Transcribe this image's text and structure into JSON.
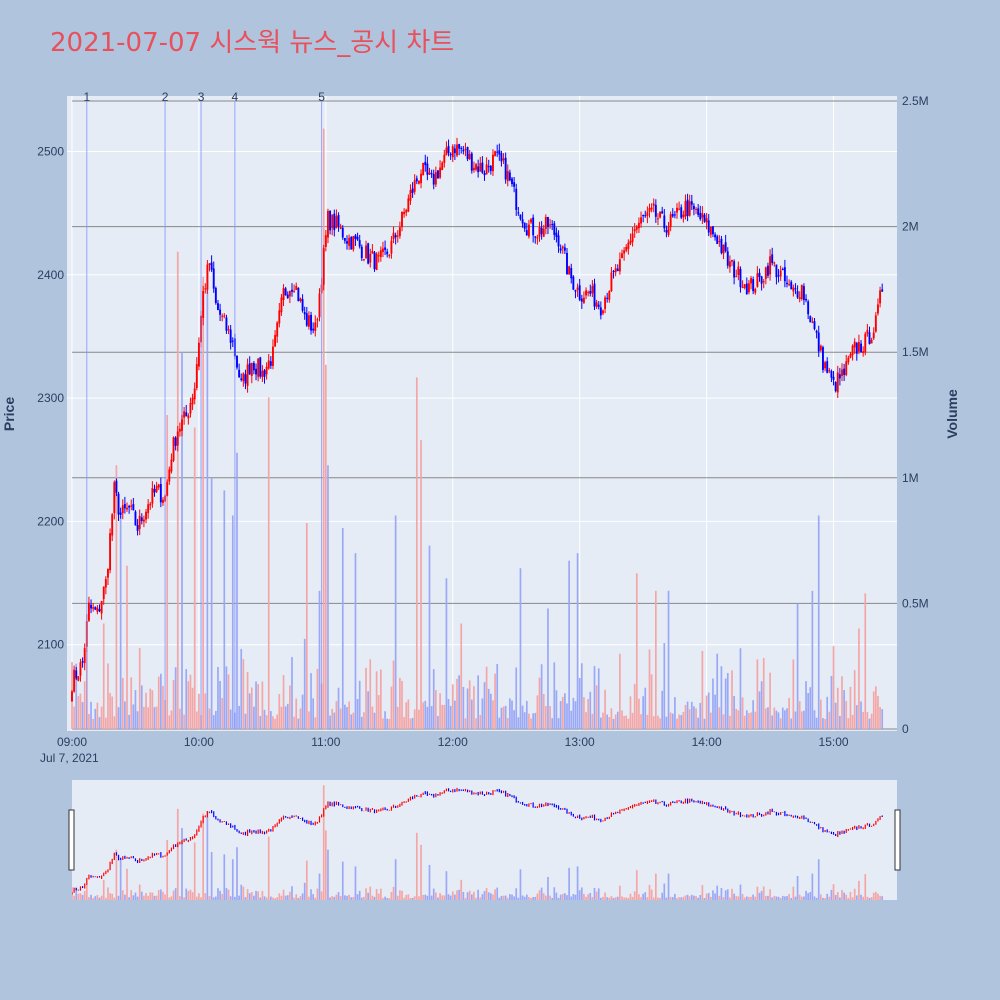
{
  "chart_data": {
    "type": "candlestick",
    "title": "2021-07-07 시스웍 뉴스_공시 차트",
    "ylabel": "Price",
    "y2label": "Volume",
    "ylim": [
      2030,
      2545
    ],
    "y2lim": [
      0,
      2550000
    ],
    "xlim": [
      "09:00",
      "15:30"
    ],
    "x_ticks": [
      "09:00",
      "10:00",
      "11:00",
      "12:00",
      "13:00",
      "14:00",
      "15:00"
    ],
    "x_date_label": "Jul 7, 2021",
    "y_ticks": [
      2100,
      2200,
      2300,
      2400,
      2500
    ],
    "y2_ticks": [
      "0",
      "0.5M",
      "1M",
      "1.5M",
      "2M",
      "2.5M"
    ],
    "y2_tick_values": [
      0,
      500000,
      1000000,
      1500000,
      2000000,
      2500000
    ],
    "colors": {
      "up": "#ff0000",
      "down": "#0000ff",
      "up_volume": "#f4a6a6",
      "down_volume": "#9aa8f5",
      "grid": "#ffffff",
      "plot_bg": "#e5ecf6",
      "paper_bg": "#b0c4de",
      "title": "#e8505b"
    },
    "news_markers": [
      {
        "label": "1",
        "time": "09:07"
      },
      {
        "label": "2",
        "time": "09:44"
      },
      {
        "label": "3",
        "time": "10:01"
      },
      {
        "label": "4",
        "time": "10:17"
      },
      {
        "label": "5",
        "time": "10:58"
      }
    ],
    "price_path": [
      [
        "09:00",
        2070
      ],
      [
        "09:05",
        2085
      ],
      [
        "09:08",
        2130
      ],
      [
        "09:12",
        2125
      ],
      [
        "09:16",
        2150
      ],
      [
        "09:20",
        2225
      ],
      [
        "09:23",
        2205
      ],
      [
        "09:27",
        2210
      ],
      [
        "09:31",
        2195
      ],
      [
        "09:36",
        2215
      ],
      [
        "09:40",
        2225
      ],
      [
        "09:44",
        2220
      ],
      [
        "09:47",
        2255
      ],
      [
        "09:50",
        2275
      ],
      [
        "09:54",
        2285
      ],
      [
        "09:58",
        2310
      ],
      [
        "10:02",
        2385
      ],
      [
        "10:05",
        2410
      ],
      [
        "10:08",
        2375
      ],
      [
        "10:12",
        2360
      ],
      [
        "10:16",
        2345
      ],
      [
        "10:20",
        2310
      ],
      [
        "10:25",
        2330
      ],
      [
        "10:30",
        2320
      ],
      [
        "10:35",
        2335
      ],
      [
        "10:40",
        2385
      ],
      [
        "10:45",
        2395
      ],
      [
        "10:50",
        2365
      ],
      [
        "10:55",
        2355
      ],
      [
        "10:58",
        2400
      ],
      [
        "11:01",
        2445
      ],
      [
        "11:05",
        2440
      ],
      [
        "11:10",
        2430
      ],
      [
        "11:15",
        2425
      ],
      [
        "11:20",
        2415
      ],
      [
        "11:25",
        2410
      ],
      [
        "11:30",
        2420
      ],
      [
        "11:35",
        2440
      ],
      [
        "11:40",
        2465
      ],
      [
        "11:45",
        2485
      ],
      [
        "11:50",
        2475
      ],
      [
        "11:55",
        2490
      ],
      [
        "12:00",
        2505
      ],
      [
        "12:05",
        2500
      ],
      [
        "12:10",
        2490
      ],
      [
        "12:15",
        2485
      ],
      [
        "12:20",
        2495
      ],
      [
        "12:25",
        2485
      ],
      [
        "12:30",
        2460
      ],
      [
        "12:35",
        2440
      ],
      [
        "12:40",
        2435
      ],
      [
        "12:45",
        2440
      ],
      [
        "12:50",
        2430
      ],
      [
        "12:55",
        2400
      ],
      [
        "13:00",
        2385
      ],
      [
        "13:05",
        2385
      ],
      [
        "13:10",
        2375
      ],
      [
        "13:15",
        2395
      ],
      [
        "13:20",
        2410
      ],
      [
        "13:25",
        2435
      ],
      [
        "13:30",
        2445
      ],
      [
        "13:35",
        2450
      ],
      [
        "13:40",
        2440
      ],
      [
        "13:45",
        2445
      ],
      [
        "13:50",
        2455
      ],
      [
        "13:55",
        2450
      ],
      [
        "14:00",
        2440
      ],
      [
        "14:05",
        2430
      ],
      [
        "14:10",
        2410
      ],
      [
        "14:15",
        2400
      ],
      [
        "14:20",
        2390
      ],
      [
        "14:25",
        2395
      ],
      [
        "14:30",
        2410
      ],
      [
        "14:35",
        2400
      ],
      [
        "14:40",
        2385
      ],
      [
        "14:45",
        2390
      ],
      [
        "14:50",
        2360
      ],
      [
        "14:55",
        2330
      ],
      [
        "15:00",
        2310
      ],
      [
        "15:05",
        2320
      ],
      [
        "15:10",
        2340
      ],
      [
        "15:15",
        2345
      ],
      [
        "15:20",
        2360
      ],
      [
        "15:23",
        2390
      ]
    ],
    "volume_spikes": [
      [
        "09:06",
        190000,
        "up"
      ],
      [
        "09:15",
        420000,
        "up"
      ],
      [
        "09:21",
        1050000,
        "up"
      ],
      [
        "09:23",
        850000,
        "down"
      ],
      [
        "09:26",
        650000,
        "up"
      ],
      [
        "09:45",
        1250000,
        "up"
      ],
      [
        "09:50",
        1900000,
        "up"
      ],
      [
        "09:52",
        1500000,
        "down"
      ],
      [
        "09:58",
        1200000,
        "up"
      ],
      [
        "10:02",
        1800000,
        "up"
      ],
      [
        "10:04",
        1850000,
        "down"
      ],
      [
        "10:06",
        1000000,
        "down"
      ],
      [
        "10:12",
        950000,
        "down"
      ],
      [
        "10:16",
        850000,
        "down"
      ],
      [
        "10:18",
        1100000,
        "down"
      ],
      [
        "10:33",
        1320000,
        "up"
      ],
      [
        "10:51",
        820000,
        "up"
      ],
      [
        "10:57",
        550000,
        "down"
      ],
      [
        "10:59",
        2390000,
        "up"
      ],
      [
        "11:00",
        1450000,
        "up"
      ],
      [
        "11:01",
        1050000,
        "down"
      ],
      [
        "11:08",
        800000,
        "down"
      ],
      [
        "11:14",
        700000,
        "down"
      ],
      [
        "11:33",
        850000,
        "down"
      ],
      [
        "11:43",
        1400000,
        "up"
      ],
      [
        "11:45",
        1150000,
        "up"
      ],
      [
        "11:49",
        730000,
        "down"
      ],
      [
        "11:57",
        600000,
        "down"
      ],
      [
        "12:04",
        420000,
        "up"
      ],
      [
        "12:32",
        640000,
        "down"
      ],
      [
        "12:45",
        480000,
        "down"
      ],
      [
        "12:55",
        670000,
        "down"
      ],
      [
        "12:59",
        700000,
        "down"
      ],
      [
        "13:27",
        620000,
        "up"
      ],
      [
        "13:36",
        550000,
        "up"
      ],
      [
        "13:42",
        550000,
        "down"
      ],
      [
        "14:43",
        500000,
        "down"
      ],
      [
        "14:50",
        550000,
        "down"
      ],
      [
        "14:53",
        850000,
        "down"
      ],
      [
        "15:00",
        330000,
        "up"
      ],
      [
        "15:12",
        400000,
        "up"
      ],
      [
        "15:15",
        540000,
        "up"
      ]
    ]
  }
}
